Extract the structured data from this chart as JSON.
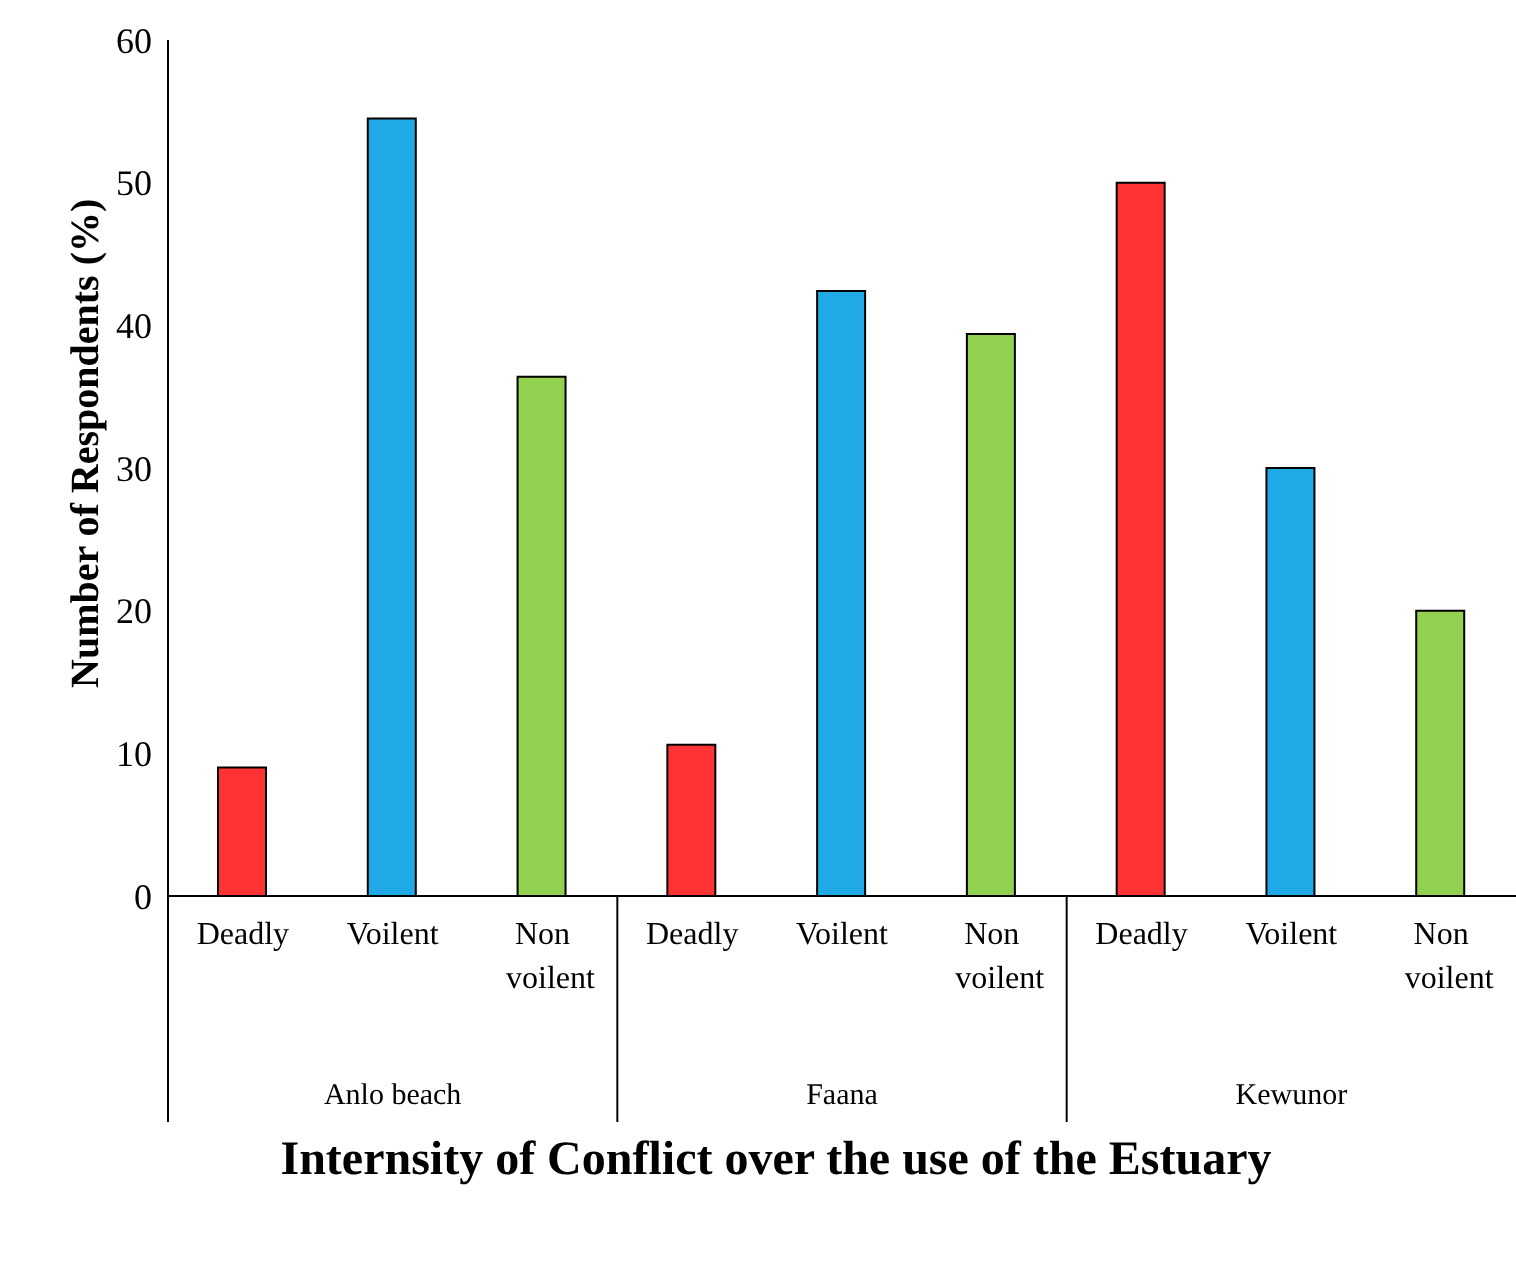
{
  "chart_data": {
    "type": "bar",
    "xlabel": "Internsity of Conflict over the use of the Estuary",
    "ylabel": "Number of Respondents (%)",
    "categories": [
      "Deadly",
      "Voilent",
      "Non voilent",
      "Deadly",
      "Voilent",
      "Non voilent",
      "Deadly",
      "Voilent",
      "Non voilent"
    ],
    "values": [
      9,
      54.5,
      36.4,
      10.6,
      42.4,
      39.4,
      50,
      30,
      20
    ],
    "colors": [
      "#ff3333",
      "#1fa9e6",
      "#92d050",
      "#ff3333",
      "#1fa9e6",
      "#92d050",
      "#ff3333",
      "#1fa9e6",
      "#92d050"
    ],
    "annotations": [
      "Anlo beach",
      "Faana",
      "Kewunor"
    ],
    "ylim": [
      0,
      60
    ],
    "yticks": [
      0,
      10,
      20,
      30,
      40,
      50,
      60
    ],
    "grid": false,
    "legend": false
  }
}
